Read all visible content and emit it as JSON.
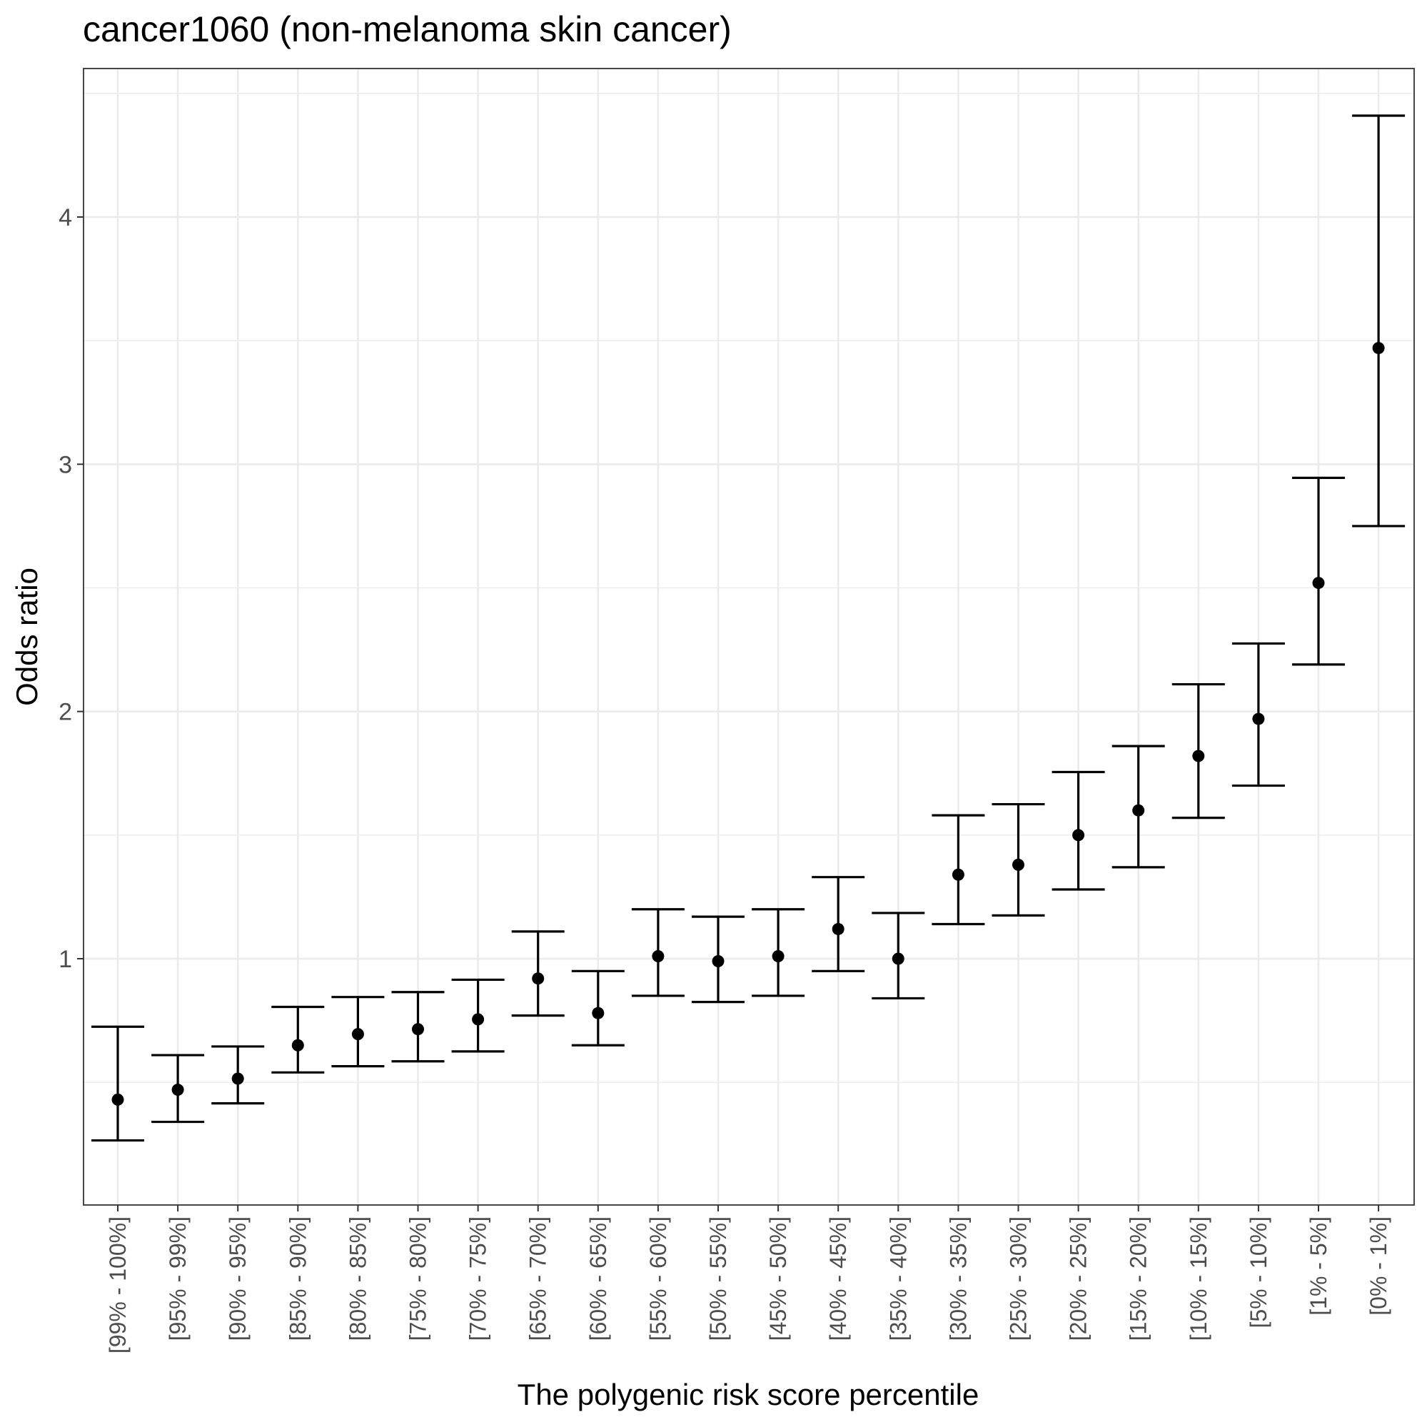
{
  "chart_data": {
    "type": "scatter",
    "title": "cancer1060 (non-melanoma skin cancer)",
    "xlabel": "The polygenic risk score percentile",
    "ylabel": "Odds ratio",
    "ylim": [
      0.0,
      4.6
    ],
    "y_ticks": [
      1,
      2,
      3,
      4
    ],
    "grid": true,
    "legend": "none",
    "colors": {
      "point": "#000000",
      "errorbar": "#000000",
      "grid": "#ebebeb",
      "panel_border": "#333333"
    },
    "categories": [
      "[99% - 100%]",
      "[95% - 99%]",
      "[90% - 95%]",
      "[85% - 90%]",
      "[80% - 85%]",
      "[75% - 80%]",
      "[70% - 75%]",
      "[65% - 70%]",
      "[60% - 65%]",
      "[55% - 60%]",
      "[50% - 55%]",
      "[45% - 50%]",
      "[40% - 45%]",
      "[35% - 40%]",
      "[30% - 35%]",
      "[25% - 30%]",
      "[20% - 25%]",
      "[15% - 20%]",
      "[10% - 15%]",
      "[5% - 10%]",
      "[1% - 5%]",
      "[0% - 1%]"
    ],
    "series": [
      {
        "odds_ratio": [
          0.43,
          0.47,
          0.515,
          0.65,
          0.695,
          0.715,
          0.755,
          0.92,
          0.78,
          1.01,
          0.99,
          1.01,
          1.12,
          1.0,
          1.34,
          1.38,
          1.5,
          1.6,
          1.82,
          1.97,
          2.52,
          3.47
        ],
        "ci_lower": [
          0.265,
          0.34,
          0.415,
          0.54,
          0.565,
          0.585,
          0.625,
          0.77,
          0.65,
          0.85,
          0.825,
          0.85,
          0.95,
          0.84,
          1.14,
          1.175,
          1.28,
          1.37,
          1.57,
          1.7,
          2.19,
          2.75
        ],
        "ci_upper": [
          0.725,
          0.61,
          0.645,
          0.805,
          0.845,
          0.865,
          0.915,
          1.11,
          0.95,
          1.2,
          1.17,
          1.2,
          1.33,
          1.185,
          1.58,
          1.625,
          1.755,
          1.86,
          2.11,
          2.275,
          2.945,
          4.41
        ]
      }
    ]
  }
}
